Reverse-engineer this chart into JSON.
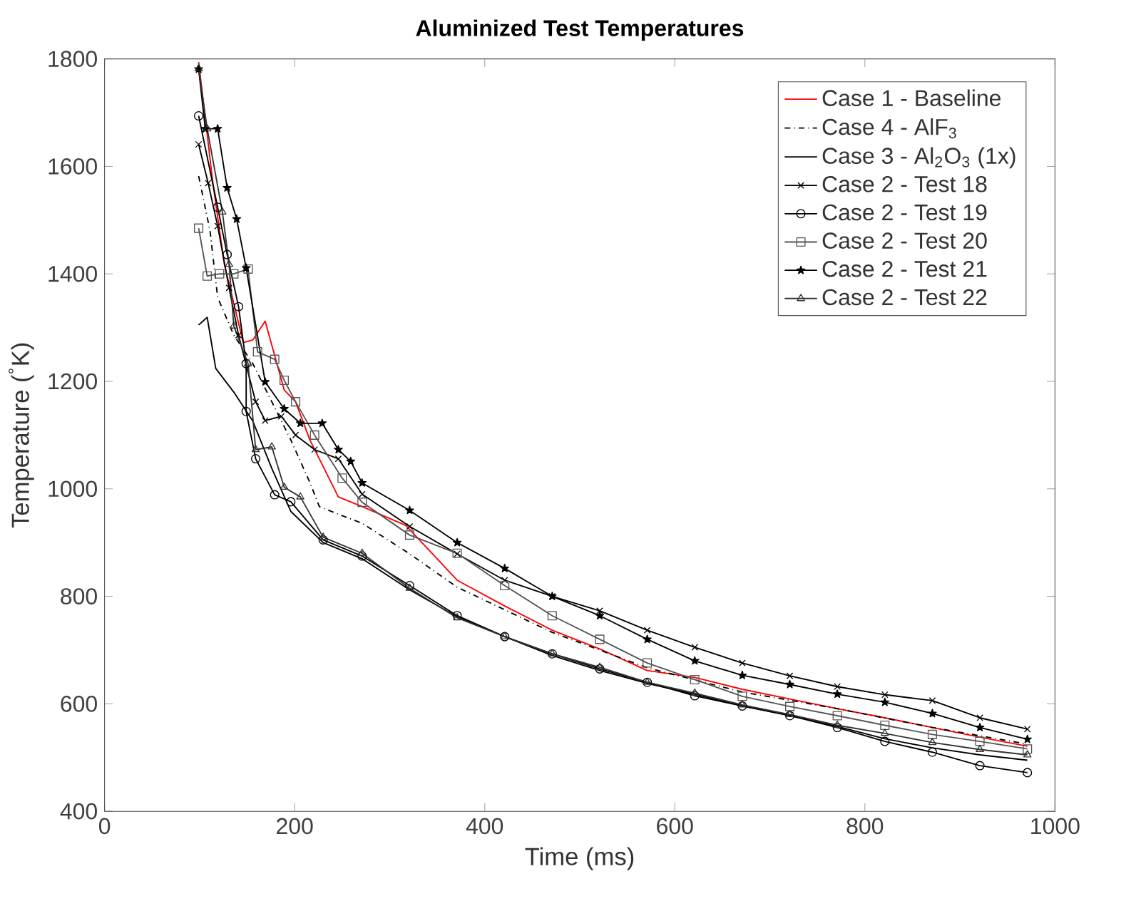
{
  "chart_data": {
    "type": "line",
    "title": "Aluminized Test Temperatures",
    "xlabel": "Time (ms)",
    "ylabel": "Temperature ($^{°}$K)",
    "xlim": [
      0,
      1000
    ],
    "ylim": [
      400,
      1800
    ],
    "xticks": [
      0,
      200,
      400,
      600,
      800,
      1000
    ],
    "yticks": [
      400,
      600,
      800,
      1000,
      1200,
      1400,
      1600,
      1800
    ],
    "grid": false,
    "legend": "top right",
    "series": [
      {
        "name": "Case 1 - Baseline",
        "color": "#ff0000",
        "marker": "none",
        "line_style": "solid",
        "x": [
          99,
          114,
          126,
          146,
          156,
          169,
          189,
          201,
          216,
          231,
          246,
          271,
          317,
          371,
          421,
          471,
          521,
          571,
          621,
          671,
          721,
          771,
          821,
          871,
          921,
          971
        ],
        "values": [
          1794,
          1569,
          1418,
          1272,
          1277,
          1312,
          1184,
          1162,
          1091,
          1038,
          985,
          967,
          932,
          830,
          782,
          737,
          702,
          662,
          649,
          627,
          609,
          591,
          574,
          556,
          538,
          521
        ]
      },
      {
        "name": "Case 4 - AlF$_{3}$",
        "color": "#000000",
        "marker": "none",
        "line_style": "dashdot",
        "x": [
          99,
          111,
          119,
          136,
          156,
          176,
          196,
          216,
          226,
          250,
          271,
          321,
          371,
          471,
          571,
          671,
          771,
          871,
          971
        ],
        "values": [
          1582,
          1480,
          1356,
          1286,
          1233,
          1162,
          1091,
          1012,
          967,
          950,
          936,
          879,
          817,
          733,
          667,
          622,
          591,
          556,
          525
        ]
      },
      {
        "name": "Case 3 - Al$_{2}$O$_{3}$ (1x)",
        "color": "#000000",
        "marker": "none",
        "line_style": "solid",
        "x": [
          99,
          108,
          117,
          136,
          156,
          176,
          196,
          230,
          271,
          321,
          371,
          421,
          471,
          521,
          571,
          621,
          671,
          721,
          771,
          821,
          871,
          921,
          971
        ],
        "values": [
          1305,
          1319,
          1224,
          1180,
          1126,
          1038,
          958,
          900,
          870,
          812,
          762,
          725,
          690,
          662,
          638,
          618,
          596,
          578,
          558,
          535,
          518,
          505,
          495
        ]
      },
      {
        "name": "Case 2 - Test 18",
        "color": "#000000",
        "marker": "cross",
        "line_style": "solid",
        "x": [
          99,
          109,
          119,
          131,
          141,
          159,
          169,
          186,
          201,
          221,
          246,
          271,
          321,
          371,
          421,
          471,
          521,
          571,
          621,
          671,
          721,
          771,
          821,
          871,
          921,
          971
        ],
        "values": [
          1641,
          1569,
          1489,
          1374,
          1286,
          1162,
          1127,
          1135,
          1100,
          1073,
          1056,
          990,
          930,
          879,
          830,
          800,
          773,
          737,
          705,
          676,
          652,
          632,
          617,
          606,
          574,
          553
        ]
      },
      {
        "name": "Case 2 - Test 19",
        "color": "#000000",
        "marker": "circle",
        "line_style": "solid",
        "x": [
          99,
          119,
          129,
          141,
          149,
          149,
          159,
          179,
          196,
          230,
          271,
          321,
          371,
          421,
          471,
          521,
          571,
          621,
          671,
          721,
          771,
          821,
          871,
          921,
          971
        ],
        "values": [
          1694,
          1524,
          1436,
          1339,
          1233,
          1144,
          1056,
          989,
          976,
          905,
          875,
          820,
          764,
          725,
          693,
          665,
          640,
          615,
          596,
          578,
          556,
          530,
          510,
          485,
          472
        ]
      },
      {
        "name": "Case 2 - Test 20",
        "color": "#555555",
        "marker": "square",
        "line_style": "solid",
        "x": [
          99,
          108,
          121,
          136,
          151,
          161,
          179,
          189,
          201,
          221,
          250,
          271,
          321,
          371,
          421,
          471,
          521,
          571,
          621,
          671,
          721,
          771,
          821,
          871,
          921,
          971
        ],
        "values": [
          1485,
          1396,
          1400,
          1400,
          1409,
          1255,
          1241,
          1202,
          1162,
          1100,
          1020,
          975,
          914,
          880,
          820,
          764,
          720,
          676,
          645,
          614,
          595,
          578,
          560,
          543,
          530,
          516
        ]
      },
      {
        "name": "Case 2 - Test 21",
        "color": "#000000",
        "marker": "star",
        "line_style": "solid",
        "x": [
          99,
          106,
          119,
          129,
          139,
          149,
          169,
          189,
          206,
          229,
          246,
          259,
          271,
          321,
          371,
          421,
          471,
          521,
          571,
          621,
          671,
          721,
          771,
          821,
          871,
          921,
          971
        ],
        "values": [
          1781,
          1670,
          1670,
          1560,
          1502,
          1411,
          1199,
          1149,
          1122,
          1122,
          1073,
          1051,
          1011,
          960,
          900,
          852,
          800,
          764,
          720,
          680,
          653,
          636,
          618,
          603,
          582,
          556,
          534
        ]
      },
      {
        "name": "Case 2 - Test 22",
        "color": "#333333",
        "marker": "triangle",
        "line_style": "solid",
        "x": [
          99,
          108,
          124,
          131,
          136,
          151,
          159,
          176,
          189,
          206,
          230,
          271,
          321,
          371,
          421,
          471,
          521,
          571,
          621,
          671,
          721,
          771,
          821,
          871,
          921,
          971
        ],
        "values": [
          1782,
          1670,
          1515,
          1418,
          1303,
          1233,
          1073,
          1078,
          1003,
          985,
          910,
          880,
          815,
          760,
          725,
          693,
          668,
          640,
          620,
          598,
          580,
          560,
          545,
          528,
          515,
          505
        ]
      }
    ]
  }
}
